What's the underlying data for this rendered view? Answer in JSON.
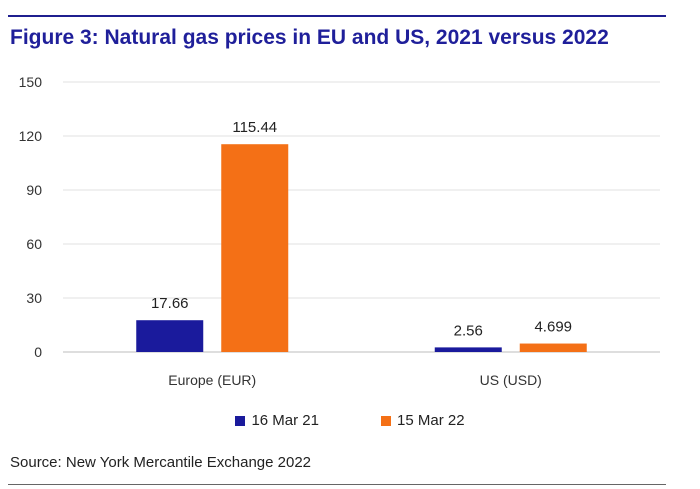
{
  "title": "Figure 3: Natural gas prices in EU and US, 2021 versus 2022",
  "source": "Source: New York Mercantile Exchange 2022",
  "chart_data": {
    "type": "bar",
    "title": "Figure 3: Natural gas prices in EU and US, 2021 versus 2022",
    "xlabel": "",
    "ylabel": "",
    "categories": [
      "Europe (EUR)",
      "US (USD)"
    ],
    "series": [
      {
        "name": "16 Mar 21",
        "values": [
          17.66,
          2.56
        ],
        "labels": [
          "17.66",
          "2.56"
        ],
        "color": "#1a1a9c"
      },
      {
        "name": "15 Mar 22",
        "values": [
          115.44,
          4.699
        ],
        "labels": [
          "115.44",
          "4.699"
        ],
        "color": "#f47016"
      }
    ],
    "ylim": [
      0,
      150
    ],
    "yticks": [
      0,
      30,
      60,
      90,
      120,
      150
    ],
    "grid": true,
    "legend": "bottom"
  }
}
